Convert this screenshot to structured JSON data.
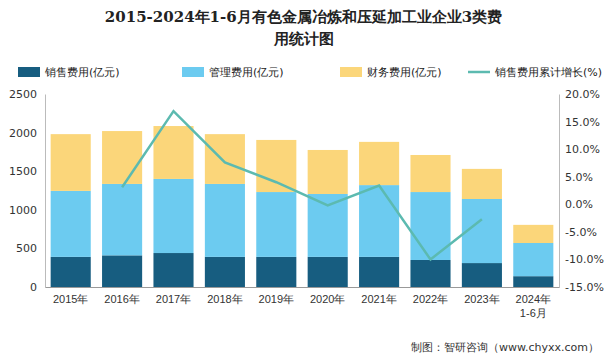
{
  "chart_data": {
    "type": "bar",
    "stacked": true,
    "title": "2015-2024年1-6月有色金属冶炼和压延加工业企业3类费用统计图",
    "footer": "制图：智研咨询（www.chyxx.com）",
    "categories": [
      "2015年",
      "2016年",
      "2017年",
      "2018年",
      "2019年",
      "2020年",
      "2021年",
      "2022年",
      "2023年",
      "2024年1-6月"
    ],
    "series": [
      {
        "name": "销售费用(亿元)",
        "color": "#175d80",
        "values": [
          390,
          410,
          440,
          390,
          390,
          390,
          390,
          350,
          310,
          140
        ]
      },
      {
        "name": "管理费用(亿元)",
        "color": "#6ccbf0",
        "values": [
          855,
          925,
          960,
          945,
          840,
          815,
          930,
          880,
          830,
          430
        ]
      },
      {
        "name": "财务费用(亿元)",
        "color": "#fbd67a",
        "values": [
          735,
          685,
          685,
          645,
          675,
          570,
          560,
          480,
          390,
          235
        ]
      },
      {
        "name": "销售费用累计增长(%)",
        "color": "#5cbab0",
        "type": "line",
        "axis": "y2",
        "values": [
          null,
          3.1,
          16.9,
          7.6,
          4.0,
          -0.2,
          3.4,
          -10.0,
          -2.7,
          null
        ]
      }
    ],
    "ylim": [
      0,
      2500
    ],
    "yticks": [
      0,
      500,
      1000,
      1500,
      2000,
      2500
    ],
    "y2lim": [
      -15,
      20
    ],
    "y2ticks": [
      {
        "value": -15,
        "label": "-15.0%"
      },
      {
        "value": -10,
        "label": "-10.0%"
      },
      {
        "value": -5,
        "label": "-5.0%"
      },
      {
        "value": 0,
        "label": "0.0%"
      },
      {
        "value": 5,
        "label": "5.0%"
      },
      {
        "value": 10,
        "label": "10.0%"
      },
      {
        "value": 15,
        "label": "15.0%"
      },
      {
        "value": 20,
        "label": "20.0%"
      }
    ],
    "legend": "top",
    "grid": false
  }
}
